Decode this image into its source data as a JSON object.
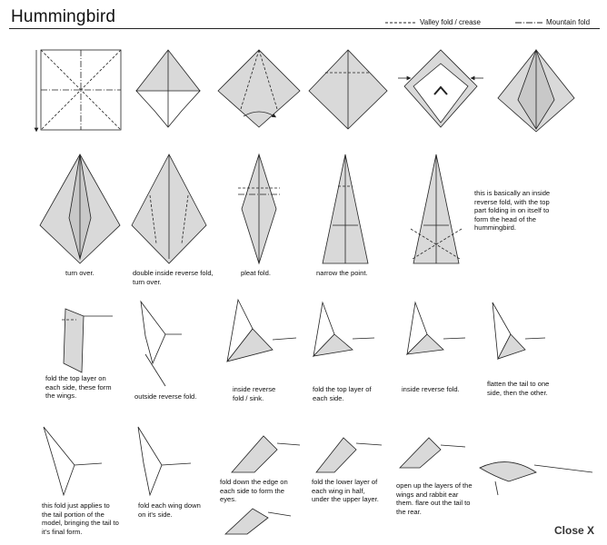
{
  "title": "Hummingbird",
  "legend": {
    "valley": "Valley fold / crease",
    "mountain": "Mountain fold"
  },
  "captions": {
    "turn_over": "turn over.",
    "double_reverse": "double inside reverse fold, turn over.",
    "pleat": "pleat fold.",
    "narrow": "narrow the point.",
    "head_note": "this is basically an inside reverse fold, with the top part folding in on itself to form the head of the hummingbird.",
    "wings": "fold the top layer on each side, these form the wings.",
    "outside_reverse": "outside reverse fold.",
    "reverse_sink": "inside reverse fold / sink.",
    "fold_top_layer": "fold the top layer of each side.",
    "inside_reverse": "inside reverse fold.",
    "flatten_tail": "flatten the tail to one side, then the other.",
    "tail_fold": "this fold just applies to the tail portion of the model, bringing the tail to it's final form.",
    "wing_down": "fold each wing down on it's side.",
    "eyes": "fold down the edge on each side to form the eyes.",
    "lower_layer": "fold the lower layer of each wing in half, under the upper layer.",
    "open_layers": "open up the layers of the wings and rabbit ear them. flare out the tail to the rear."
  },
  "close_label": "Close X",
  "colors": {
    "paper": "#d9d9d9",
    "line": "#222222"
  }
}
